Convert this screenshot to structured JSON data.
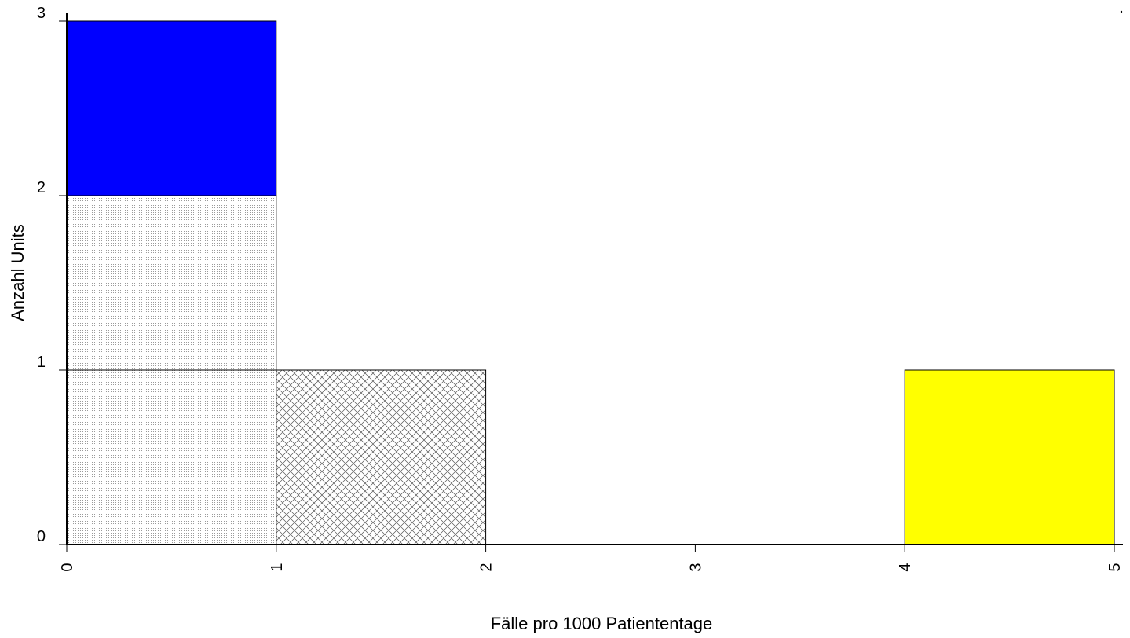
{
  "chart_data": {
    "type": "bar",
    "title": "",
    "xlabel": "Fälle pro 1000 Patiententage",
    "ylabel": "Anzahl Units",
    "xlim": [
      0,
      5
    ],
    "ylim": [
      0,
      3
    ],
    "x_ticks": [
      "0",
      "1",
      "2",
      "3",
      "4",
      "5"
    ],
    "y_ticks": [
      "0",
      "1",
      "2",
      "3"
    ],
    "grid": false,
    "legend": "none",
    "bins": [
      {
        "x0": 0,
        "x1": 1,
        "segments": [
          {
            "y0": 0,
            "y1": 1,
            "fill": "dots"
          },
          {
            "y0": 1,
            "y1": 2,
            "fill": "dots"
          },
          {
            "y0": 2,
            "y1": 3,
            "fill": "solid",
            "color": "#0000ff"
          }
        ]
      },
      {
        "x0": 1,
        "x1": 2,
        "segments": [
          {
            "y0": 0,
            "y1": 1,
            "fill": "crosshatch"
          }
        ]
      },
      {
        "x0": 4,
        "x1": 5,
        "segments": [
          {
            "y0": 0,
            "y1": 1,
            "fill": "solid",
            "color": "#ffff00"
          }
        ]
      }
    ]
  }
}
